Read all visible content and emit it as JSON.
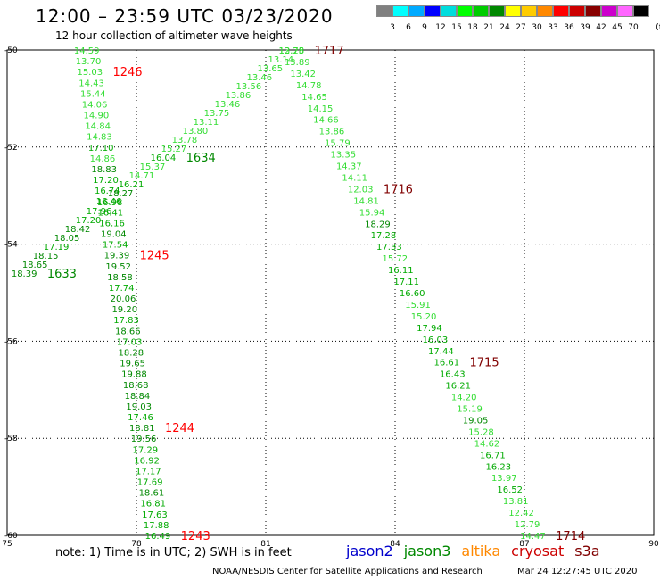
{
  "header": {
    "title": "12:00 – 23:59 UTC 03/23/2020",
    "subtitle": "12 hour collection of altimeter wave heights"
  },
  "legend": {
    "unit": "(ft)",
    "colors": [
      "#808080",
      "#00ffff",
      "#00aaff",
      "#0000ff",
      "#00dddd",
      "#00ff00",
      "#00cc00",
      "#008800",
      "#ffff00",
      "#ffcc00",
      "#ff8800",
      "#ff0000",
      "#cc0000",
      "#880000",
      "#cc00cc",
      "#ff66ff",
      "#000000"
    ],
    "labels": [
      "3",
      "6",
      "9",
      "12",
      "15",
      "18",
      "21",
      "24",
      "27",
      "30",
      "33",
      "36",
      "39",
      "42",
      "45",
      "70"
    ]
  },
  "axes": {
    "x_ticks": [
      "75",
      "78",
      "81",
      "84",
      "87",
      "90"
    ],
    "y_ticks": [
      "-50",
      "-52",
      "-54",
      "-56",
      "-58",
      "-60"
    ]
  },
  "tracks": [
    {
      "name": "jason3-left",
      "color": "#008800",
      "lon_start": 76.55,
      "lat_start": -50.0,
      "lon_end": 78.2,
      "lat_end": -60.0,
      "values": [
        "14.59",
        "13.70",
        "15.03",
        "14.43",
        "15.44",
        "14.06",
        "14.90",
        "14.84",
        "14.83",
        "17.10",
        "14.86",
        "18.83",
        "17.20",
        "16.74",
        "16.46",
        "16.41",
        "16.16",
        "19.04",
        "17.54",
        "19.39",
        "19.52",
        "18.58",
        "17.74",
        "20.06",
        "19.20",
        "17.83",
        "18.66",
        "17.03",
        "18.28",
        "19.65",
        "19.88",
        "18.68",
        "18.84",
        "19.03",
        "17.46",
        "18.81",
        "19.56",
        "17.29",
        "16.92",
        "17.17",
        "17.69",
        "18.61",
        "16.81",
        "17.63",
        "17.88",
        "16.49"
      ],
      "times": [
        {
          "index": 2,
          "label": "1246",
          "color": "#ff0000"
        },
        {
          "index": 19,
          "label": "1245",
          "color": "#ff0000"
        },
        {
          "index": 35,
          "label": "1244",
          "color": "#ff0000"
        },
        {
          "index": 45,
          "label": "1243",
          "color": "#ff0000"
        }
      ]
    },
    {
      "name": "jason3-diag",
      "color": "#008800",
      "lon_start": 75.1,
      "lat_start": -54.6,
      "lon_end": 81.3,
      "lat_end": -50.0,
      "values": [
        "18.39",
        "18.65",
        "18.15",
        "17.19",
        "18.05",
        "18.42",
        "17.20",
        "17.96",
        "16.98",
        "18.27",
        "16.21",
        "14.71",
        "15.37",
        "16.04",
        "15.27",
        "13.78",
        "13.80",
        "13.11",
        "13.75",
        "13.46",
        "13.86",
        "13.56",
        "13.46",
        "13.65",
        "13.14",
        "13.75"
      ],
      "times": [
        {
          "index": 0,
          "label": "1633",
          "color": "#008800"
        },
        {
          "index": 13,
          "label": "1634",
          "color": "#008800"
        }
      ]
    },
    {
      "name": "cryosat-right",
      "color": "#008800",
      "lon_start": 81.3,
      "lat_start": -50.0,
      "lon_end": 86.9,
      "lat_end": -60.0,
      "values": [
        "12.28",
        "13.89",
        "13.42",
        "14.78",
        "14.65",
        "14.15",
        "14.66",
        "13.86",
        "15.79",
        "13.35",
        "14.37",
        "14.11",
        "12.03",
        "14.81",
        "15.94",
        "18.29",
        "17.28",
        "17.33",
        "15.72",
        "16.11",
        "17.11",
        "16.60",
        "15.91",
        "15.20",
        "17.94",
        "16.03",
        "17.44",
        "16.61",
        "16.43",
        "16.21",
        "14.20",
        "15.19",
        "19.05",
        "15.28",
        "14.62",
        "16.71",
        "16.23",
        "13.97",
        "16.52",
        "13.81",
        "12.42",
        "12.79",
        "14.47"
      ],
      "times": [
        {
          "index": 0,
          "label": "1717",
          "color": "#800000"
        },
        {
          "index": 12,
          "label": "1716",
          "color": "#800000"
        },
        {
          "index": 27,
          "label": "1715",
          "color": "#800000"
        },
        {
          "index": 42,
          "label": "1714",
          "color": "#800000"
        }
      ]
    }
  ],
  "footer": {
    "note": "note: 1) Time is in UTC; 2) SWH is in feet",
    "satellites": [
      {
        "name": "jason2",
        "color": "#0000cc"
      },
      {
        "name": "jason3",
        "color": "#008800"
      },
      {
        "name": "altika",
        "color": "#ff8800"
      },
      {
        "name": "cryosat",
        "color": "#cc0000"
      },
      {
        "name": "s3a",
        "color": "#800000"
      }
    ],
    "credit": "NOAA/NESDIS Center for Satellite Applications and Research",
    "timestamp": "Mar 24 12:27:45 UTC 2020"
  }
}
